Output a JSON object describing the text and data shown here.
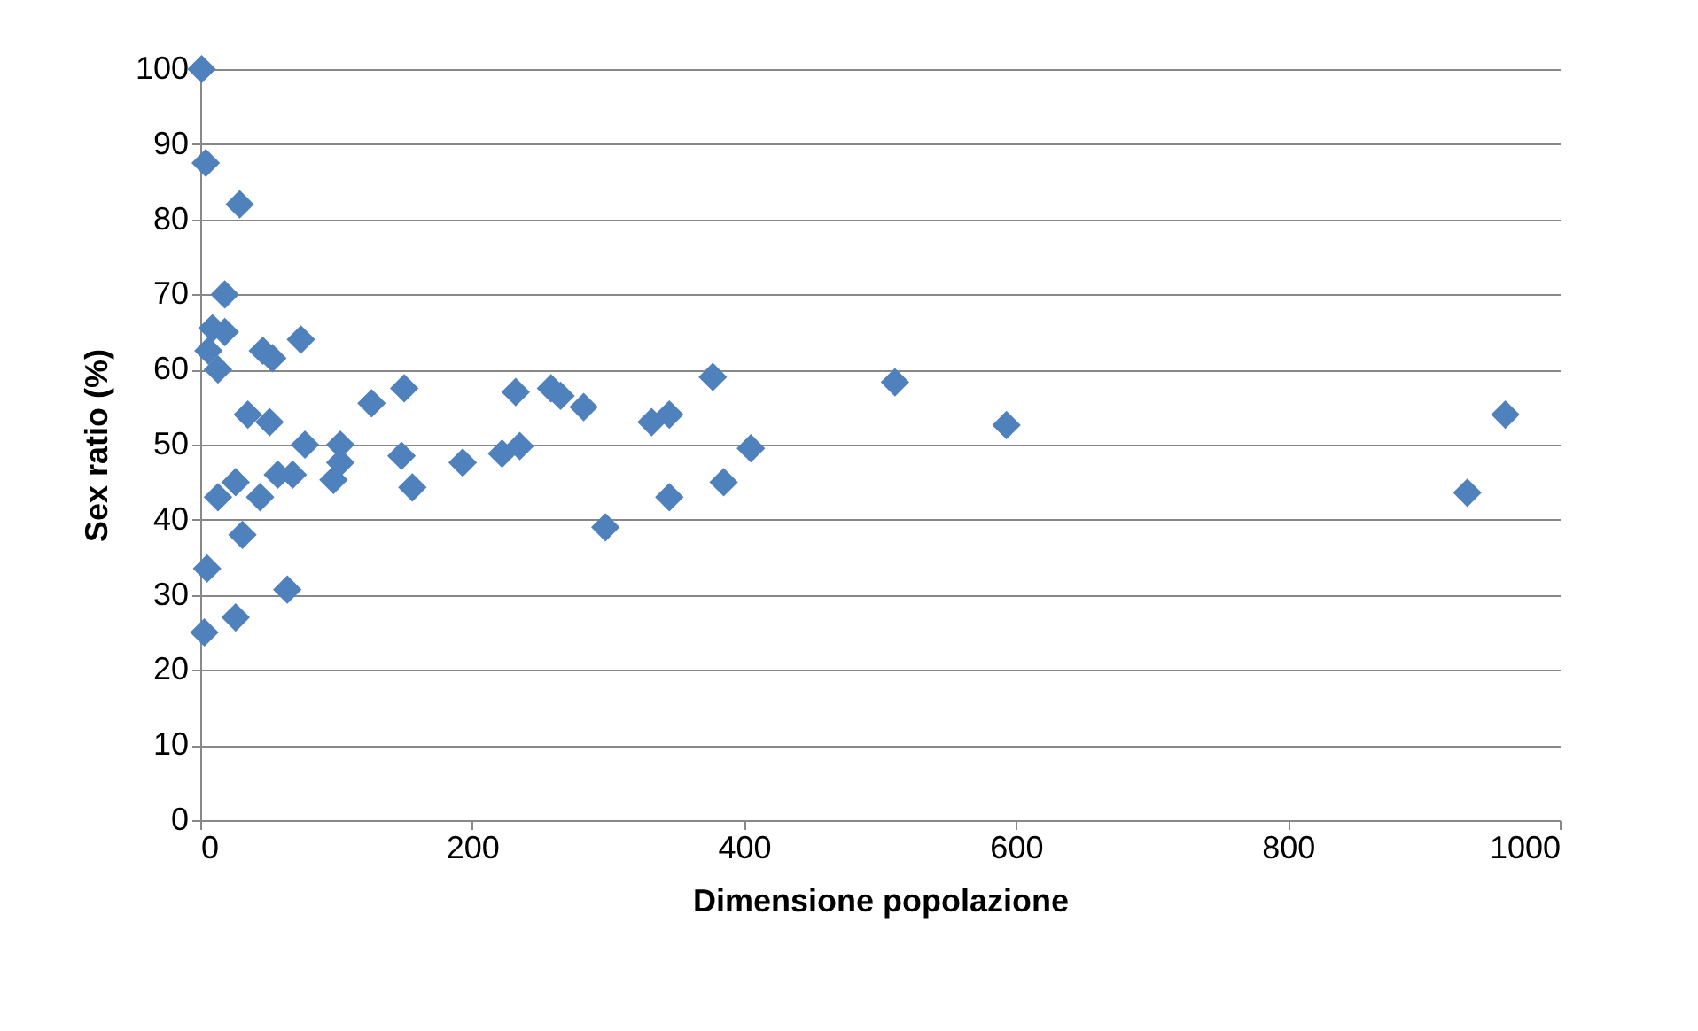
{
  "chart_data": {
    "type": "scatter",
    "xlabel": "Dimensione popolazione",
    "ylabel": "Sex ratio (%)",
    "x": [
      1,
      4,
      29,
      18,
      9,
      18,
      6,
      13,
      46,
      53,
      74,
      35,
      51,
      126,
      150,
      232,
      258,
      265,
      282,
      377,
      332,
      345,
      405,
      385,
      345,
      298,
      235,
      222,
      193,
      156,
      148,
      103,
      77,
      98,
      103,
      13,
      26,
      44,
      31,
      5,
      64,
      26,
      3,
      57,
      68,
      593,
      511,
      932,
      960
    ],
    "series": [
      {
        "color": "#4f81bd",
        "values": [
          100,
          87.5,
          82,
          70,
          65.5,
          65,
          62.5,
          60,
          62.5,
          61.5,
          64,
          54,
          53,
          55.5,
          57.5,
          57,
          57.5,
          56.5,
          55,
          59,
          53,
          54,
          49.5,
          45,
          43,
          39,
          49.8,
          48.8,
          47.6,
          44.3,
          48.5,
          50,
          50,
          45.3,
          47.6,
          43,
          45,
          43,
          38,
          33.5,
          30.7,
          27,
          25,
          46,
          46,
          52.6,
          58.3,
          43.6,
          54
        ]
      }
    ],
    "xlim": [
      0,
      1000
    ],
    "xticks": [
      0,
      200,
      400,
      600,
      800,
      1000
    ],
    "ylim": [
      0,
      100
    ],
    "yticks": [
      0,
      10,
      20,
      30,
      40,
      50,
      60,
      70,
      80,
      90,
      100
    ],
    "grid": "y",
    "marker": "diamond",
    "legend": false
  }
}
